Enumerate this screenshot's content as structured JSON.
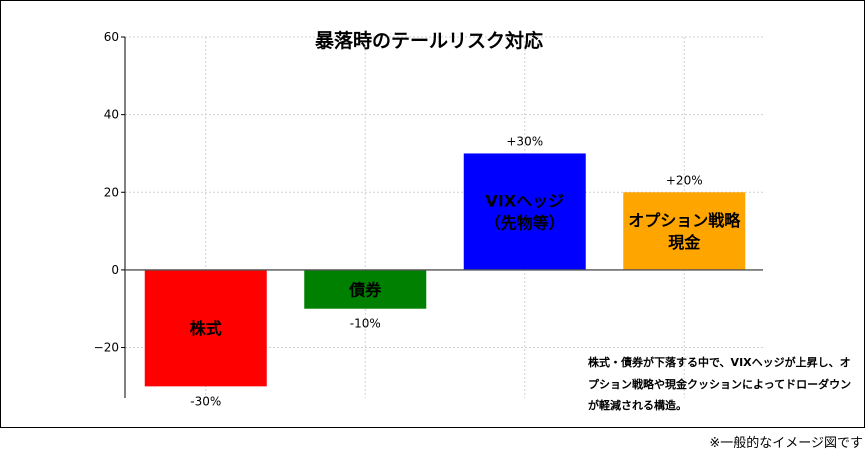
{
  "chart_data": {
    "type": "bar",
    "title": "暴落時のテールリスク対応",
    "xlabel": "",
    "ylabel": "",
    "ylim": [
      -33,
      60
    ],
    "yticks": [
      -20,
      0,
      20,
      40,
      60
    ],
    "ytick_labels": [
      "−20",
      "0",
      "20",
      "40",
      "60"
    ],
    "grid": true,
    "categories": [
      "株式",
      "債券",
      "VIXヘッジ\n（先物等）",
      "オプション戦略\n現金"
    ],
    "values": [
      -30,
      -10,
      30,
      20
    ],
    "value_labels": [
      "-30%",
      "-10%",
      "+30%",
      "+20%"
    ],
    "colors": [
      "#ff0000",
      "#008000",
      "#0000ff",
      "#ffa500"
    ],
    "annotation": "株式・債券が下落する中で、VIXヘッジが上昇し、オプション戦略や現金クッションによってドローダウンが軽減される構造。"
  },
  "footnote": "※一般的なイメージ図です"
}
